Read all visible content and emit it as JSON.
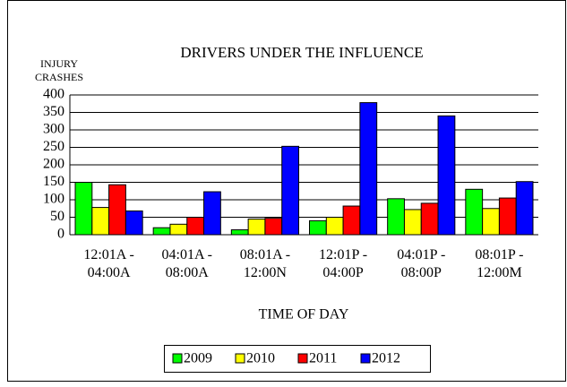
{
  "chart_data": {
    "type": "bar",
    "title": "DRIVERS UNDER THE INFLUENCE",
    "y_label": "INJURY\nCRASHES",
    "x_label": "TIME OF DAY",
    "categories": [
      "12:01A -\n04:00A",
      "04:01A -\n08:00A",
      "08:01A -\n12:00N",
      "12:01P -\n04:00P",
      "04:01P -\n08:00P",
      "08:01P -\n12:00M"
    ],
    "series": [
      {
        "name": "2009",
        "color": "#00ff00",
        "values": [
          150,
          20,
          14,
          40,
          103,
          130
        ]
      },
      {
        "name": "2010",
        "color": "#ffff00",
        "values": [
          78,
          30,
          45,
          50,
          72,
          75
        ]
      },
      {
        "name": "2011",
        "color": "#ff0000",
        "values": [
          143,
          50,
          47,
          82,
          90,
          105
        ]
      },
      {
        "name": "2012",
        "color": "#0000ff",
        "values": [
          68,
          123,
          253,
          378,
          340,
          152
        ]
      }
    ],
    "ylim": [
      0,
      400
    ],
    "yticks": [
      0,
      50,
      100,
      150,
      200,
      250,
      300,
      350,
      400
    ],
    "grid": true,
    "legend": "bottom"
  }
}
